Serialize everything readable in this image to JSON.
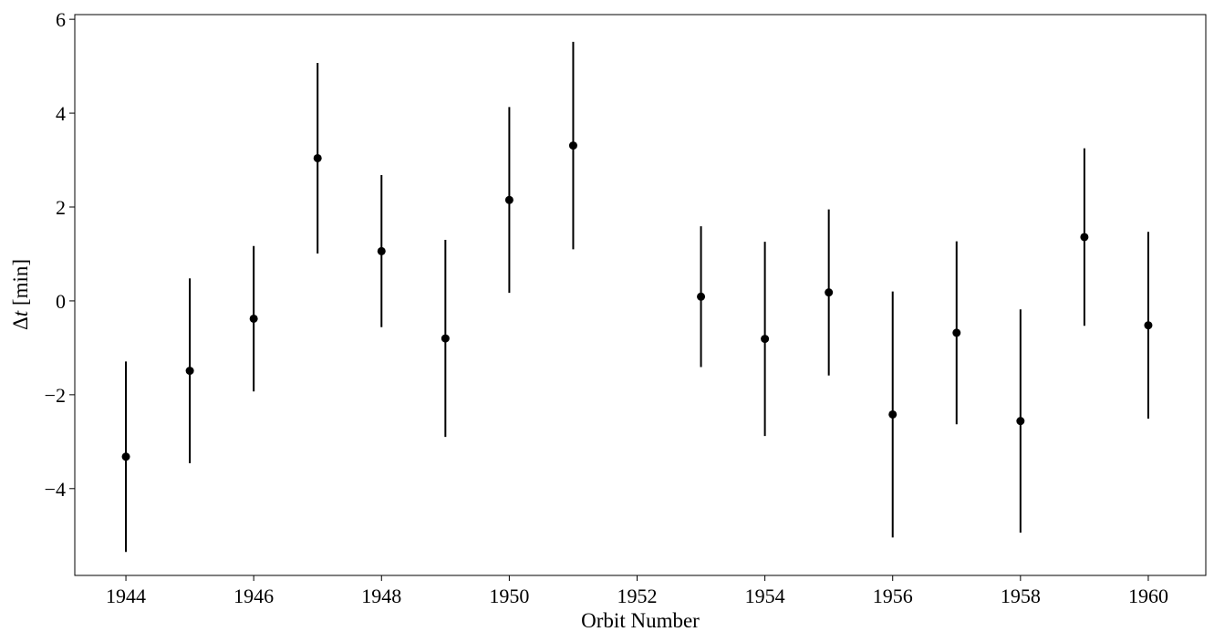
{
  "chart_data": {
    "type": "scatter",
    "title": "",
    "xlabel": "Orbit Number",
    "ylabel_symbol": "Δ",
    "ylabel_var": "t",
    "ylabel_unit": " [min]",
    "xlim": [
      1943.2,
      1960.9
    ],
    "ylim": [
      -5.85,
      6.1
    ],
    "xticks": [
      1944,
      1946,
      1948,
      1950,
      1952,
      1954,
      1956,
      1958,
      1960
    ],
    "yticks": [
      -4,
      -2,
      0,
      2,
      4,
      6
    ],
    "ytick_labels": [
      "−4",
      "−2",
      "0",
      "2",
      "4",
      "6"
    ],
    "grid": false,
    "marker_color": "#000000",
    "series": [
      {
        "points": [
          {
            "x": 1944,
            "y": -3.32,
            "err": 2.03
          },
          {
            "x": 1945,
            "y": -1.49,
            "err": 1.97
          },
          {
            "x": 1946,
            "y": -0.38,
            "err": 1.55
          },
          {
            "x": 1947,
            "y": 3.04,
            "err": 2.03
          },
          {
            "x": 1948,
            "y": 1.06,
            "err": 1.62
          },
          {
            "x": 1949,
            "y": -0.8,
            "err": 2.1
          },
          {
            "x": 1950,
            "y": 2.15,
            "err": 1.98
          },
          {
            "x": 1951,
            "y": 3.31,
            "err": 2.21
          },
          {
            "x": 1953,
            "y": 0.09,
            "err": 1.5
          },
          {
            "x": 1954,
            "y": -0.81,
            "err": 2.07
          },
          {
            "x": 1955,
            "y": 0.18,
            "err": 1.77
          },
          {
            "x": 1956,
            "y": -2.42,
            "err": 2.62
          },
          {
            "x": 1957,
            "y": -0.68,
            "err": 1.95
          },
          {
            "x": 1958,
            "y": -2.56,
            "err": 2.38
          },
          {
            "x": 1959,
            "y": 1.36,
            "err": 1.89
          },
          {
            "x": 1960,
            "y": -0.52,
            "err": 1.99
          }
        ]
      }
    ]
  }
}
